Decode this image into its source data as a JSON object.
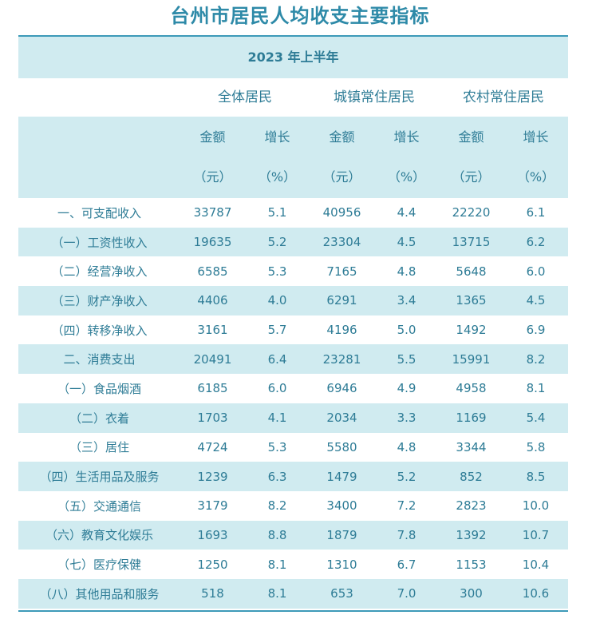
{
  "title": "台州市居民人均收支主要指标",
  "period": "2023 年上半年",
  "groups": [
    "全体居民",
    "城镇常住居民",
    "农村常住居民"
  ],
  "sub": {
    "amount": "金额",
    "amount_unit": "（元）",
    "growth": "增长",
    "growth_unit": "（%）"
  },
  "rows": [
    {
      "label": "一、可支配收入",
      "values": [
        "33787",
        "5.1",
        "40956",
        "4.4",
        "22220",
        "6.1"
      ]
    },
    {
      "label": "（一）工资性收入",
      "values": [
        "19635",
        "5.2",
        "23304",
        "4.5",
        "13715",
        "6.2"
      ]
    },
    {
      "label": "（二）经营净收入",
      "values": [
        "6585",
        "5.3",
        "7165",
        "4.8",
        "5648",
        "6.0"
      ]
    },
    {
      "label": "（三）财产净收入",
      "values": [
        "4406",
        "4.0",
        "6291",
        "3.4",
        "1365",
        "4.5"
      ]
    },
    {
      "label": "（四）转移净收入",
      "values": [
        "3161",
        "5.7",
        "4196",
        "5.0",
        "1492",
        "6.9"
      ]
    },
    {
      "label": "二、消费支出",
      "values": [
        "20491",
        "6.4",
        "23281",
        "5.5",
        "15991",
        "8.2"
      ]
    },
    {
      "label": "（一）食品烟酒",
      "values": [
        "6185",
        "6.0",
        "6946",
        "4.9",
        "4958",
        "8.1"
      ]
    },
    {
      "label": "（二）衣着",
      "values": [
        "1703",
        "4.1",
        "2034",
        "3.3",
        "1169",
        "5.4"
      ]
    },
    {
      "label": "（三）居住",
      "values": [
        "4724",
        "5.3",
        "5580",
        "4.8",
        "3344",
        "5.8"
      ]
    },
    {
      "label": "（四）生活用品及服务",
      "values": [
        "1239",
        "6.3",
        "1479",
        "5.2",
        "852",
        "8.5"
      ]
    },
    {
      "label": "（五）交通通信",
      "values": [
        "3179",
        "8.2",
        "3400",
        "7.2",
        "2823",
        "10.0"
      ]
    },
    {
      "label": "（六）教育文化娱乐",
      "values": [
        "1693",
        "8.8",
        "1879",
        "7.8",
        "1392",
        "10.7"
      ]
    },
    {
      "label": "（七）医疗保健",
      "values": [
        "1250",
        "8.1",
        "1310",
        "6.7",
        "1153",
        "10.4"
      ]
    },
    {
      "label": "（八）其他用品和服务",
      "values": [
        "518",
        "8.1",
        "653",
        "7.0",
        "300",
        "10.6"
      ]
    }
  ]
}
